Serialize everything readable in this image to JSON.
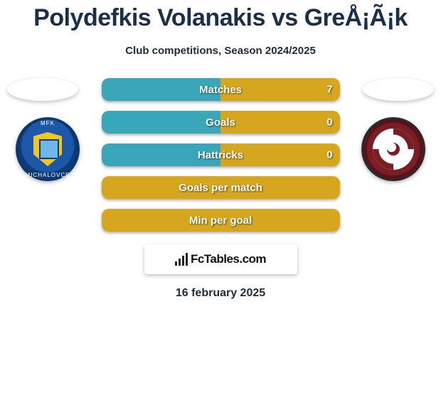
{
  "title": "Polydefkis Volanakis vs GreÅ¡Ã¡k",
  "subtitle": "Club competitions, Season 2024/2025",
  "date": "16 february 2025",
  "brand": "FcTables.com",
  "colors": {
    "left_fill": "#3aa6b9",
    "right_fill": "#d6a61f",
    "full_yellow": "#d6a61f",
    "full_teal": "#3aa6b9"
  },
  "stats": [
    {
      "label": "Matches",
      "left_val": "",
      "right_val": "7",
      "left_pct": 50,
      "right_pct": 50,
      "mode": "split"
    },
    {
      "label": "Goals",
      "left_val": "",
      "right_val": "0",
      "left_pct": 50,
      "right_pct": 50,
      "mode": "split"
    },
    {
      "label": "Hattricks",
      "left_val": "",
      "right_val": "0",
      "left_pct": 50,
      "right_pct": 50,
      "mode": "split"
    },
    {
      "label": "Goals per match",
      "left_val": "",
      "right_val": "",
      "mode": "full",
      "full_color_key": "full_yellow"
    },
    {
      "label": "Min per goal",
      "left_val": "",
      "right_val": "",
      "mode": "full",
      "full_color_key": "full_yellow"
    }
  ]
}
